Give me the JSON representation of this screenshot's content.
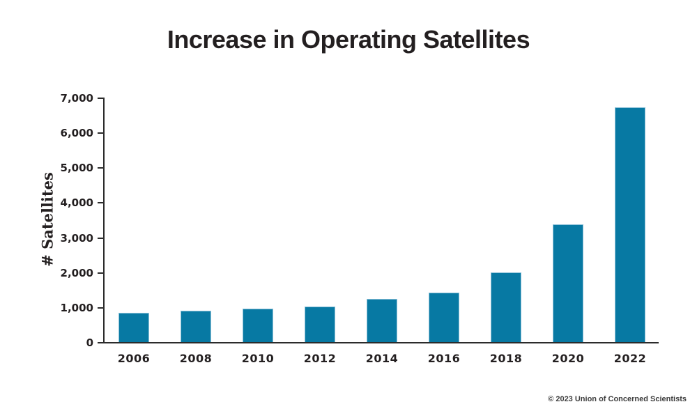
{
  "page": {
    "footer": "© 2023 Union of Concerned Scientists"
  },
  "chart_data": {
    "type": "bar",
    "title": "Increase in Operating Satellites",
    "xlabel": "",
    "ylabel": "# Satellites",
    "categories": [
      "2006",
      "2008",
      "2010",
      "2012",
      "2014",
      "2016",
      "2018",
      "2020",
      "2022"
    ],
    "values": [
      845,
      895,
      950,
      1025,
      1240,
      1415,
      2000,
      3370,
      6720
    ],
    "ylim": [
      0,
      7000
    ],
    "ytick_step": 1000,
    "ytick_labels": [
      "0",
      "1,000",
      "2,000",
      "3,000",
      "4,000",
      "5,000",
      "6,000",
      "7,000"
    ],
    "grid": false,
    "legend": false,
    "colors": {
      "bar_fill": "#0779A3",
      "bar_edge": "#8FC2D9",
      "axis": "#2B2B2B",
      "title_text": "#231F20",
      "footer_text": "#3D3D3D"
    }
  }
}
